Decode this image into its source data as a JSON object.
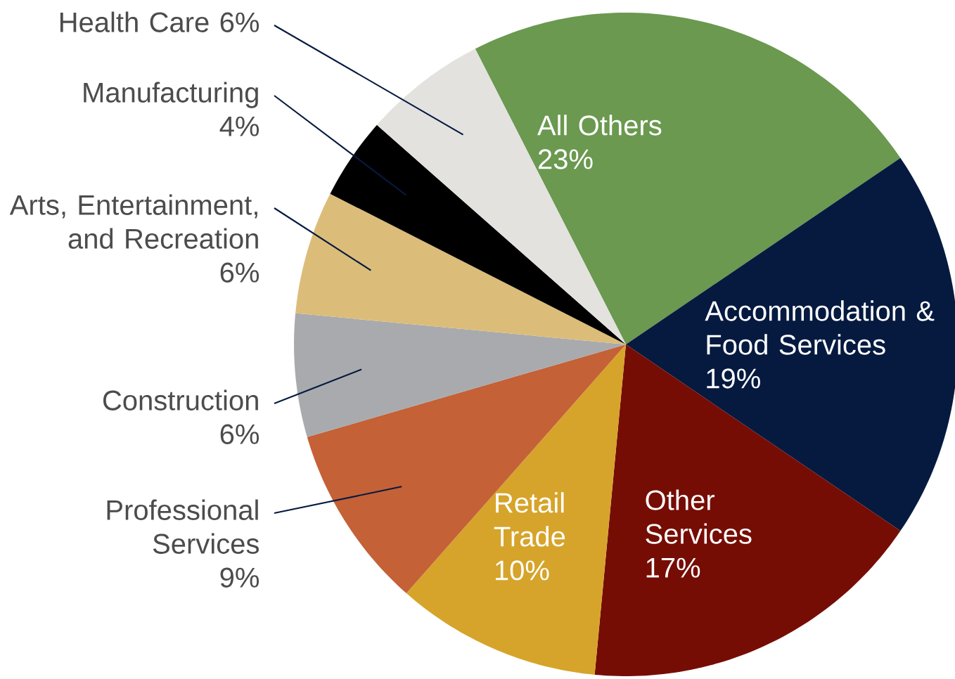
{
  "chart_data": {
    "type": "pie",
    "categories": [
      "All Others",
      "Accommodation & Food Services",
      "Other Services",
      "Retail Trade",
      "Professional Services",
      "Construction",
      "Arts, Entertainment, and Recreation",
      "Manufacturing",
      "Health Care"
    ],
    "values": [
      23,
      19,
      17,
      10,
      9,
      6,
      6,
      4,
      6
    ],
    "value_labels": [
      "23%",
      "19%",
      "17%",
      "10%",
      "9%",
      "6%",
      "6%",
      "4%",
      "6%"
    ],
    "colors": [
      "#6a994f",
      "#061a40",
      "#760d05",
      "#d6a42a",
      "#c46137",
      "#a9aaad",
      "#dbbd79",
      "#000000",
      "#e3e2df"
    ]
  }
}
